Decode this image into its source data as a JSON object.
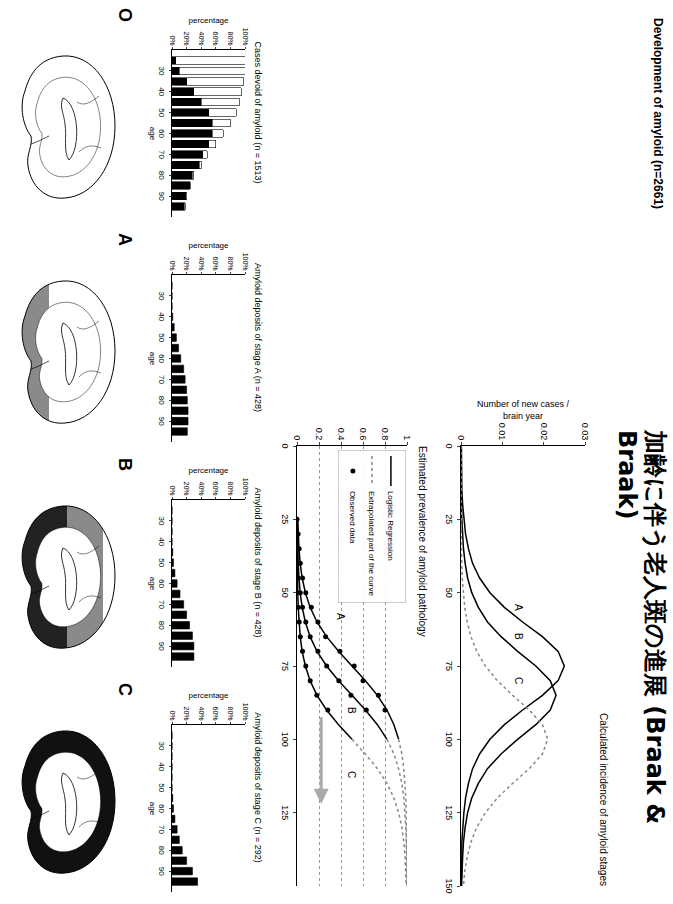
{
  "header": {
    "title": "加齢に伴う老人斑の進展 (Braak & Braak)",
    "figure_title": "Development of amyloid (n=2661)"
  },
  "stages": [
    "O",
    "A",
    "B",
    "C"
  ],
  "chart_data": [
    {
      "type": "bar",
      "stacked": true,
      "title": "Cases devoid of amyloid (n = 1513)",
      "x_label": "age",
      "y_label": "percentage",
      "x": [
        25,
        30,
        35,
        40,
        45,
        50,
        55,
        60,
        65,
        70,
        75,
        80,
        85,
        90,
        95
      ],
      "series": [
        {
          "color": "#000000",
          "values": [
            5,
            10,
            20,
            30,
            40,
            50,
            55,
            55,
            50,
            42,
            37,
            28,
            24,
            19,
            17
          ]
        },
        {
          "color": "#ffffff",
          "values": [
            95,
            90,
            78,
            65,
            52,
            38,
            25,
            15,
            10,
            6,
            3,
            2,
            1,
            1,
            1
          ]
        }
      ],
      "xlim": [
        20,
        100
      ],
      "xticks": [
        30,
        40,
        50,
        60,
        70,
        80,
        90
      ],
      "ylim": [
        0,
        100
      ],
      "yticks": [
        {
          "value": 0,
          "label": "0%"
        },
        {
          "value": 20,
          "label": "20%"
        },
        {
          "value": 40,
          "label": "40%"
        },
        {
          "value": 60,
          "label": "60%"
        },
        {
          "value": 80,
          "label": "80%"
        },
        {
          "value": 100,
          "label": "100%"
        }
      ],
      "grid": false
    },
    {
      "type": "bar",
      "title": "Amyloid deposits of stage A (n = 428)",
      "x_label": "age",
      "y_label": "percentage",
      "x": [
        25,
        30,
        35,
        40,
        45,
        50,
        55,
        60,
        65,
        70,
        75,
        80,
        85,
        90,
        95
      ],
      "series": [
        {
          "color": "#000000",
          "values": [
            0,
            0,
            0,
            1,
            3,
            6,
            9,
            12,
            16,
            18,
            20,
            21,
            22,
            22,
            21
          ]
        }
      ],
      "xlim": [
        20,
        100
      ],
      "xticks": [
        30,
        40,
        50,
        60,
        70,
        80,
        90
      ],
      "ylim": [
        0,
        100
      ],
      "yticks": [
        {
          "value": 0,
          "label": "0%"
        },
        {
          "value": 20,
          "label": "20%"
        },
        {
          "value": 40,
          "label": "40%"
        },
        {
          "value": 60,
          "label": "60%"
        },
        {
          "value": 80,
          "label": "80%"
        },
        {
          "value": 100,
          "label": "100%"
        }
      ],
      "grid": false
    },
    {
      "type": "bar",
      "title": "Amyloid deposits of stage B (n = 428)",
      "x_label": "age",
      "y_label": "percentage",
      "x": [
        25,
        30,
        35,
        40,
        45,
        50,
        55,
        60,
        65,
        70,
        75,
        80,
        85,
        90,
        95
      ],
      "series": [
        {
          "color": "#000000",
          "values": [
            0,
            0,
            0,
            0,
            1,
            2,
            4,
            7,
            11,
            16,
            20,
            24,
            28,
            30,
            30
          ]
        }
      ],
      "xlim": [
        20,
        100
      ],
      "xticks": [
        30,
        40,
        50,
        60,
        70,
        80,
        90
      ],
      "ylim": [
        0,
        100
      ],
      "yticks": [
        {
          "value": 0,
          "label": "0%"
        },
        {
          "value": 20,
          "label": "20%"
        },
        {
          "value": 40,
          "label": "40%"
        },
        {
          "value": 60,
          "label": "60%"
        },
        {
          "value": 80,
          "label": "80%"
        },
        {
          "value": 100,
          "label": "100%"
        }
      ],
      "grid": false
    },
    {
      "type": "bar",
      "title": "Amyloid deposits of stage C (n = 292)",
      "x_label": "age",
      "y_label": "percentage",
      "x": [
        25,
        30,
        35,
        40,
        45,
        50,
        55,
        60,
        65,
        70,
        75,
        80,
        85,
        90,
        95
      ],
      "series": [
        {
          "color": "#000000",
          "values": [
            0,
            0,
            0,
            0,
            0,
            0,
            1,
            2,
            4,
            7,
            10,
            14,
            20,
            28,
            35
          ]
        }
      ],
      "xlim": [
        20,
        100
      ],
      "xticks": [
        30,
        40,
        50,
        60,
        70,
        80,
        90
      ],
      "ylim": [
        0,
        100
      ],
      "yticks": [
        {
          "value": 0,
          "label": "0%"
        },
        {
          "value": 20,
          "label": "20%"
        },
        {
          "value": 40,
          "label": "40%"
        },
        {
          "value": 60,
          "label": "60%"
        },
        {
          "value": 80,
          "label": "80%"
        },
        {
          "value": 100,
          "label": "100%"
        }
      ],
      "grid": false
    },
    {
      "type": "line",
      "title": "Calculated incidence of amyloid stages",
      "y_label": "Number of new cases / brain year",
      "x": [
        0,
        5,
        10,
        15,
        20,
        25,
        30,
        35,
        40,
        45,
        50,
        55,
        60,
        65,
        70,
        75,
        80,
        85,
        90,
        95,
        100,
        105,
        110,
        115,
        120,
        125,
        130,
        135,
        140,
        145,
        150
      ],
      "series": [
        {
          "color": "#000000",
          "line_style": "solid",
          "values": [
            0.0001,
            0.0001,
            0.0002,
            0.0002,
            0.0004,
            0.0007,
            0.0011,
            0.0018,
            0.0028,
            0.0045,
            0.007,
            0.0105,
            0.0149,
            0.0197,
            0.0235,
            0.025,
            0.0235,
            0.0197,
            0.0149,
            0.0105,
            0.007,
            0.0045,
            0.0028,
            0.0018,
            0.0011,
            0.0007,
            0.0004,
            0.0002,
            0.0002,
            0.0001,
            0.0001
          ]
        },
        {
          "color": "#000000",
          "line_style": "solid",
          "values": [
            0,
            0,
            0.0001,
            0.0001,
            0.0001,
            0.0002,
            0.0004,
            0.0006,
            0.001,
            0.0016,
            0.0026,
            0.0042,
            0.0064,
            0.0097,
            0.0137,
            0.0181,
            0.0216,
            0.023,
            0.0216,
            0.0181,
            0.0137,
            0.0097,
            0.0064,
            0.0042,
            0.0026,
            0.0016,
            0.001,
            0.0006,
            0.0004,
            0.0002,
            0.0001
          ]
        },
        {
          "color": "#888888",
          "line_style": "dot",
          "values": [
            0,
            0,
            0,
            0,
            0,
            0,
            0.0001,
            0.0001,
            0.0002,
            0.0003,
            0.0006,
            0.0009,
            0.0015,
            0.0024,
            0.0038,
            0.0059,
            0.0088,
            0.0125,
            0.0165,
            0.0197,
            0.021,
            0.0197,
            0.0165,
            0.0125,
            0.0088,
            0.0059,
            0.0038,
            0.0024,
            0.0015,
            0.0009,
            0.0006
          ]
        }
      ],
      "annotations": [
        {
          "text": "A",
          "x": 55,
          "y": 0.014
        },
        {
          "text": "B",
          "x": 65,
          "y": 0.014
        },
        {
          "text": "C",
          "x": 80,
          "y": 0.014
        }
      ],
      "xlim": [
        0,
        150
      ],
      "xticks": [
        0,
        25,
        50,
        75,
        100,
        125,
        150
      ],
      "ylim": [
        0,
        0.03
      ],
      "yticks": [
        0,
        0.01,
        0.02,
        0.03
      ],
      "grid": false
    },
    {
      "type": "line",
      "title": "Estimated prevalence of amyloid pathology",
      "legend": "top left",
      "series": [
        {
          "name": "Logistic Regression",
          "type": "line",
          "color": "#000000",
          "line_style": "solid",
          "x": [
            25,
            30,
            35,
            40,
            45,
            50,
            55,
            60,
            65,
            70,
            75,
            80,
            85,
            90,
            95,
            100
          ],
          "values": [
            0.007,
            0.011,
            0.018,
            0.029,
            0.047,
            0.076,
            0.119,
            0.182,
            0.269,
            0.378,
            0.5,
            0.622,
            0.731,
            0.818,
            0.881,
            0.924
          ]
        },
        {
          "name": "Logistic Regression",
          "type": "line",
          "color": "#000000",
          "line_style": "solid",
          "x": [
            25,
            30,
            35,
            40,
            45,
            50,
            55,
            60,
            65,
            70,
            75,
            80,
            85,
            90,
            95,
            100
          ],
          "values": [
            0.002,
            0.004,
            0.007,
            0.011,
            0.018,
            0.029,
            0.047,
            0.076,
            0.119,
            0.182,
            0.269,
            0.378,
            0.5,
            0.622,
            0.731,
            0.818
          ]
        },
        {
          "name": "Logistic Regression",
          "type": "line",
          "color": "#000000",
          "line_style": "solid",
          "x": [
            25,
            30,
            35,
            40,
            45,
            50,
            55,
            60,
            65,
            70,
            75,
            80,
            85,
            90,
            95,
            100
          ],
          "values": [
            0.001,
            0.001,
            0.002,
            0.002,
            0.004,
            0.007,
            0.011,
            0.018,
            0.029,
            0.047,
            0.076,
            0.119,
            0.182,
            0.269,
            0.378,
            0.5
          ]
        },
        {
          "name": "Extrapolated part of the curve",
          "type": "line",
          "color": "#888888",
          "line_style": "dot",
          "x": [
            100,
            105,
            110,
            115,
            120,
            125,
            130,
            135,
            140,
            145,
            150
          ],
          "values": [
            0.924,
            0.953,
            0.971,
            0.982,
            0.989,
            0.993,
            0.996,
            0.998,
            0.998,
            0.999,
            0.999
          ]
        },
        {
          "name": "Extrapolated part of the curve",
          "type": "line",
          "color": "#888888",
          "line_style": "dot",
          "x": [
            100,
            105,
            110,
            115,
            120,
            125,
            130,
            135,
            140,
            145,
            150
          ],
          "values": [
            0.818,
            0.881,
            0.924,
            0.953,
            0.971,
            0.982,
            0.989,
            0.993,
            0.996,
            0.998,
            0.998
          ]
        },
        {
          "name": "Extrapolated part of the curve",
          "type": "line",
          "color": "#888888",
          "line_style": "dot",
          "x": [
            100,
            105,
            110,
            115,
            120,
            125,
            130,
            135,
            140,
            145,
            150
          ],
          "values": [
            0.5,
            0.622,
            0.731,
            0.818,
            0.881,
            0.924,
            0.953,
            0.971,
            0.982,
            0.989,
            0.993
          ]
        },
        {
          "name": "Observed data",
          "type": "scatter",
          "marker": "circle",
          "color": "#000000",
          "x": [
            25,
            30,
            35,
            40,
            45,
            50,
            55,
            60,
            65,
            70,
            75,
            80,
            85,
            90
          ],
          "values": [
            0,
            0.01,
            0.02,
            0.03,
            0.05,
            0.08,
            0.13,
            0.19,
            0.26,
            0.39,
            0.52,
            0.6,
            0.74,
            0.8
          ]
        },
        {
          "name": "Observed data",
          "type": "scatter",
          "marker": "circle",
          "color": "#000000",
          "x": [
            40,
            45,
            50,
            55,
            60,
            65,
            70,
            75,
            80,
            85,
            90
          ],
          "values": [
            0,
            0.01,
            0.03,
            0.05,
            0.08,
            0.12,
            0.19,
            0.27,
            0.38,
            0.49,
            0.63
          ]
        },
        {
          "name": "Observed data",
          "type": "scatter",
          "marker": "circle",
          "color": "#000000",
          "x": [
            50,
            55,
            60,
            65,
            70,
            75,
            80,
            85,
            90
          ],
          "values": [
            0,
            0.01,
            0.02,
            0.03,
            0.05,
            0.08,
            0.12,
            0.18,
            0.28
          ]
        }
      ],
      "annotations": [
        {
          "text": "A",
          "x": 58,
          "y": 0.4
        },
        {
          "text": "B",
          "x": 90,
          "y": 0.5
        },
        {
          "text": "C",
          "x": 112,
          "y": 0.5
        }
      ],
      "xlim": [
        0,
        150
      ],
      "xticks": [
        0,
        25,
        50,
        75,
        100,
        125
      ],
      "ylim": [
        0,
        1
      ],
      "yticks": [
        0,
        0.2,
        0.4,
        0.6,
        0.8,
        1
      ],
      "grid": true
    }
  ]
}
